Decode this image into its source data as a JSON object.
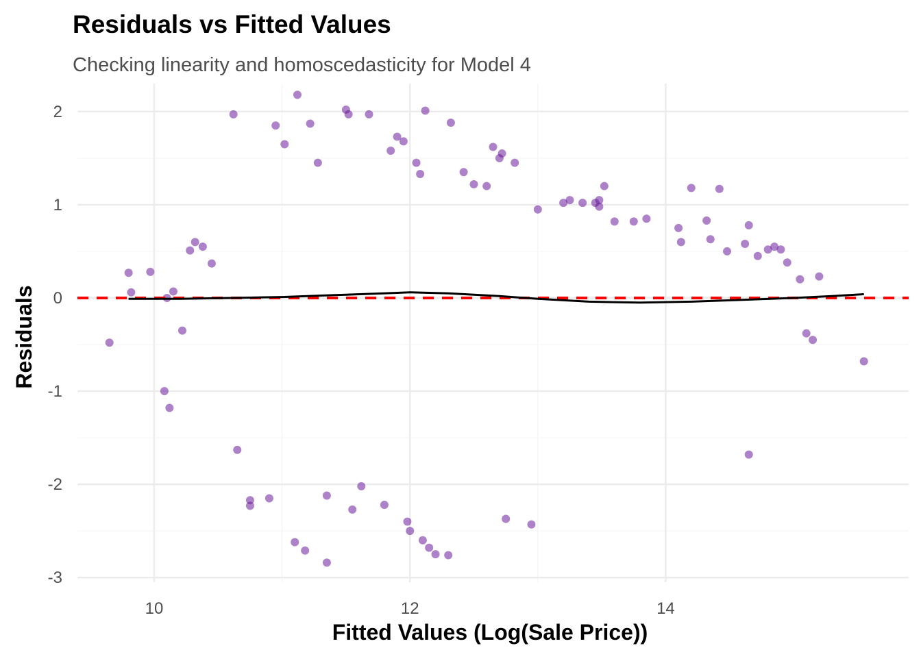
{
  "chart_data": {
    "type": "scatter",
    "title": "Residuals vs Fitted Values",
    "subtitle": "Checking linearity and homoscedasticity for Model 4",
    "xlabel": "Fitted Values (Log(Sale Price))",
    "ylabel": "Residuals",
    "xlim": [
      9.4,
      15.9
    ],
    "ylim": [
      -3.05,
      2.3
    ],
    "x_ticks": [
      10,
      12,
      14
    ],
    "y_ticks": [
      -3,
      -2,
      -1,
      0,
      1,
      2
    ],
    "grid": true,
    "legend": "none",
    "colors": {
      "points": "#6a1b9a",
      "reference_line": "#ff0000",
      "smooth_line": "#000000"
    },
    "reference_line": {
      "y": 0,
      "style": "dashed"
    },
    "smooth_curve": {
      "x": [
        9.8,
        10.2,
        10.6,
        11.0,
        11.4,
        11.8,
        12.0,
        12.3,
        12.7,
        13.0,
        13.4,
        13.8,
        14.2,
        14.6,
        15.0,
        15.3,
        15.55
      ],
      "y": [
        -0.01,
        -0.01,
        0.0,
        0.01,
        0.03,
        0.05,
        0.06,
        0.05,
        0.02,
        -0.01,
        -0.04,
        -0.05,
        -0.04,
        -0.02,
        0.0,
        0.02,
        0.04
      ]
    },
    "points": {
      "x": [
        9.65,
        9.8,
        9.82,
        9.97,
        10.08,
        10.12,
        10.1,
        10.22,
        10.15,
        10.28,
        10.32,
        10.38,
        10.45,
        10.62,
        10.65,
        10.75,
        10.75,
        10.9,
        10.95,
        11.02,
        11.1,
        11.12,
        11.18,
        11.22,
        11.28,
        11.35,
        11.35,
        11.5,
        11.52,
        11.55,
        11.62,
        11.68,
        11.8,
        11.85,
        11.9,
        11.95,
        11.98,
        12.0,
        12.05,
        12.08,
        12.1,
        12.12,
        12.15,
        12.2,
        12.3,
        12.32,
        12.42,
        12.5,
        12.6,
        12.65,
        12.7,
        12.72,
        12.75,
        12.82,
        12.95,
        13.0,
        13.2,
        13.25,
        13.35,
        13.45,
        13.48,
        13.48,
        13.52,
        13.6,
        13.75,
        13.85,
        14.1,
        14.12,
        14.2,
        14.32,
        14.35,
        14.42,
        14.48,
        14.62,
        14.65,
        14.65,
        14.72,
        14.8,
        14.85,
        14.9,
        14.95,
        15.05,
        15.1,
        15.15,
        15.2,
        15.55
      ],
      "y": [
        -0.48,
        0.27,
        0.06,
        0.28,
        -1.0,
        -1.18,
        0.0,
        -0.35,
        0.07,
        0.51,
        0.6,
        0.55,
        0.37,
        1.97,
        -1.63,
        -2.17,
        -2.23,
        -2.15,
        1.85,
        1.65,
        -2.62,
        2.18,
        -2.71,
        1.87,
        1.45,
        -2.84,
        -2.12,
        2.02,
        1.97,
        -2.27,
        -2.02,
        1.97,
        -2.22,
        1.58,
        1.73,
        1.68,
        -2.4,
        -2.5,
        1.45,
        1.33,
        -2.6,
        2.01,
        -2.68,
        -2.75,
        -2.76,
        1.88,
        1.35,
        1.22,
        1.2,
        1.62,
        1.5,
        1.55,
        -2.37,
        1.45,
        -2.43,
        0.95,
        1.02,
        1.05,
        1.02,
        1.02,
        1.05,
        0.98,
        1.2,
        0.82,
        0.82,
        0.85,
        0.75,
        0.6,
        1.18,
        0.83,
        0.63,
        1.17,
        0.5,
        0.58,
        0.78,
        -1.68,
        0.45,
        0.52,
        0.55,
        0.52,
        0.38,
        0.2,
        -0.38,
        -0.45,
        0.23,
        -0.68
      ]
    }
  }
}
